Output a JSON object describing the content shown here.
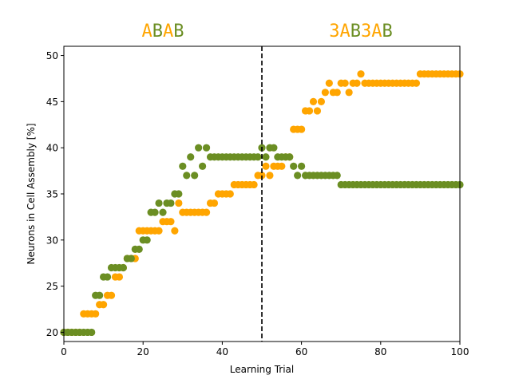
{
  "chart_data": {
    "type": "scatter",
    "xlabel": "Learning Trial",
    "ylabel": "Neurons in Cell Assembly [%]",
    "xlim": [
      0,
      100
    ],
    "ylim": [
      19,
      51
    ],
    "xticks": [
      "0",
      "20",
      "40",
      "60",
      "80",
      "100"
    ],
    "yticks": [
      "20",
      "25",
      "30",
      "35",
      "40",
      "45",
      "50"
    ],
    "grid": false,
    "vline": {
      "x": 50,
      "style": "dashed",
      "color": "#000000"
    },
    "sequence_titles": [
      {
        "center_x": 25,
        "parts": [
          {
            "text": "A",
            "color": "#ffa500"
          },
          {
            "text": "B",
            "color": "#6b8e23"
          },
          {
            "text": "A",
            "color": "#ffa500"
          },
          {
            "text": "B",
            "color": "#6b8e23"
          }
        ]
      },
      {
        "center_x": 75,
        "parts": [
          {
            "text": "3A",
            "color": "#ffa500"
          },
          {
            "text": "B",
            "color": "#6b8e23"
          },
          {
            "text": "3A",
            "color": "#ffa500"
          },
          {
            "text": "B",
            "color": "#6b8e23"
          }
        ]
      }
    ],
    "series": [
      {
        "color": "#ffa500",
        "x": [
          0,
          1,
          2,
          3,
          4,
          5,
          6,
          7,
          8,
          9,
          10,
          11,
          12,
          13,
          14,
          15,
          16,
          17,
          18,
          19,
          20,
          21,
          22,
          23,
          24,
          25,
          26,
          27,
          28,
          29,
          30,
          31,
          32,
          33,
          34,
          35,
          36,
          37,
          38,
          39,
          40,
          41,
          42,
          43,
          44,
          45,
          46,
          47,
          48,
          49,
          50,
          51,
          52,
          53,
          54,
          55,
          56,
          57,
          58,
          59,
          60,
          61,
          62,
          63,
          64,
          65,
          66,
          67,
          68,
          69,
          70,
          71,
          72,
          73,
          74,
          75,
          76,
          77,
          78,
          79,
          80,
          81,
          82,
          83,
          84,
          85,
          86,
          87,
          88,
          89,
          90,
          91,
          92,
          93,
          94,
          95,
          96,
          97,
          98,
          99,
          100
        ],
        "y": [
          20,
          20,
          20,
          20,
          20,
          22,
          22,
          22,
          22,
          23,
          23,
          24,
          24,
          26,
          26,
          27,
          28,
          28,
          28,
          31,
          31,
          31,
          31,
          31,
          31,
          32,
          32,
          32,
          31,
          34,
          33,
          33,
          33,
          33,
          33,
          33,
          33,
          34,
          34,
          35,
          35,
          35,
          35,
          36,
          36,
          36,
          36,
          36,
          36,
          37,
          37,
          38,
          37,
          38,
          38,
          38,
          39,
          39,
          42,
          42,
          42,
          44,
          44,
          45,
          44,
          45,
          46,
          47,
          46,
          46,
          47,
          47,
          46,
          47,
          47,
          48,
          47,
          47,
          47,
          47,
          47,
          47,
          47,
          47,
          47,
          47,
          47,
          47,
          47,
          47,
          48,
          48,
          48,
          48,
          48,
          48,
          48,
          48,
          48,
          48,
          48
        ]
      },
      {
        "color": "#6b8e23",
        "x": [
          0,
          1,
          2,
          3,
          4,
          5,
          6,
          7,
          8,
          9,
          10,
          11,
          12,
          13,
          14,
          15,
          16,
          17,
          18,
          19,
          20,
          21,
          22,
          23,
          24,
          25,
          26,
          27,
          28,
          29,
          30,
          31,
          32,
          33,
          34,
          35,
          36,
          37,
          38,
          39,
          40,
          41,
          42,
          43,
          44,
          45,
          46,
          47,
          48,
          49,
          50,
          51,
          52,
          53,
          54,
          55,
          56,
          57,
          58,
          59,
          60,
          61,
          62,
          63,
          64,
          65,
          66,
          67,
          68,
          69,
          70,
          71,
          72,
          73,
          74,
          75,
          76,
          77,
          78,
          79,
          80,
          81,
          82,
          83,
          84,
          85,
          86,
          87,
          88,
          89,
          90,
          91,
          92,
          93,
          94,
          95,
          96,
          97,
          98,
          99,
          100
        ],
        "y": [
          20,
          20,
          20,
          20,
          20,
          20,
          20,
          20,
          24,
          24,
          26,
          26,
          27,
          27,
          27,
          27,
          28,
          28,
          29,
          29,
          30,
          30,
          33,
          33,
          34,
          33,
          34,
          34,
          35,
          35,
          38,
          37,
          39,
          37,
          40,
          38,
          40,
          39,
          39,
          39,
          39,
          39,
          39,
          39,
          39,
          39,
          39,
          39,
          39,
          39,
          40,
          39,
          40,
          40,
          39,
          39,
          39,
          39,
          38,
          37,
          38,
          37,
          37,
          37,
          37,
          37,
          37,
          37,
          37,
          37,
          36,
          36,
          36,
          36,
          36,
          36,
          36,
          36,
          36,
          36,
          36,
          36,
          36,
          36,
          36,
          36,
          36,
          36,
          36,
          36,
          36,
          36,
          36,
          36,
          36,
          36,
          36,
          36,
          36,
          36,
          36
        ]
      }
    ]
  }
}
